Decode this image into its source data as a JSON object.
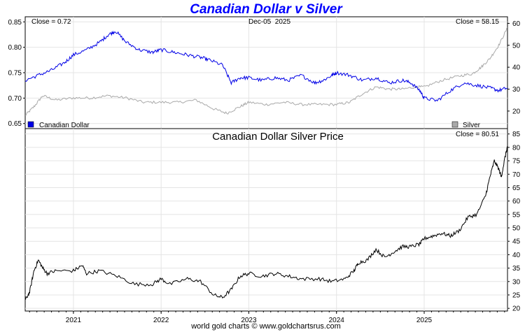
{
  "title": "Canadian Dollar v Silver",
  "footer": "world gold charts © www.goldchartsrus.com",
  "colors": {
    "cad": "#0000e6",
    "silver": "#a9a9a9",
    "ratio": "#000000",
    "title": "#0000ff",
    "grid": "#e4e4e4"
  },
  "chart_data": [
    {
      "type": "line",
      "name": "top-panel",
      "date_label": "Dec-05  2025",
      "left_close_label": "Close = 0.72",
      "right_close_label": "Close = 58.15",
      "x_ticks": [
        "2021",
        "2022",
        "2023",
        "2024",
        "2025"
      ],
      "x_range": [
        2020.45,
        2025.95
      ],
      "y_left_ticks": [
        "0.65",
        "0.70",
        "0.75",
        "0.80",
        "0.85"
      ],
      "y_left_range": [
        0.64,
        0.86
      ],
      "y_right_ticks": [
        "20",
        "30",
        "40",
        "50",
        "60"
      ],
      "y_right_range": [
        12,
        63
      ],
      "series": [
        {
          "name": "Canadian Dollar",
          "axis": "left",
          "x": [
            2020.45,
            2020.6,
            2020.75,
            2020.9,
            2021.0,
            2021.15,
            2021.3,
            2021.4,
            2021.48,
            2021.6,
            2021.75,
            2021.9,
            2022.0,
            2022.15,
            2022.3,
            2022.45,
            2022.55,
            2022.7,
            2022.8,
            2022.9,
            2023.0,
            2023.15,
            2023.3,
            2023.45,
            2023.6,
            2023.75,
            2023.85,
            2023.95,
            2024.0,
            2024.15,
            2024.3,
            2024.45,
            2024.6,
            2024.75,
            2024.85,
            2024.95,
            2025.0,
            2025.15,
            2025.3,
            2025.45,
            2025.6,
            2025.75,
            2025.85,
            2025.95
          ],
          "y": [
            0.735,
            0.745,
            0.755,
            0.77,
            0.785,
            0.795,
            0.81,
            0.825,
            0.832,
            0.81,
            0.795,
            0.79,
            0.795,
            0.79,
            0.785,
            0.78,
            0.775,
            0.765,
            0.73,
            0.74,
            0.74,
            0.735,
            0.74,
            0.735,
            0.745,
            0.73,
            0.735,
            0.745,
            0.75,
            0.745,
            0.735,
            0.74,
            0.73,
            0.735,
            0.73,
            0.715,
            0.7,
            0.695,
            0.715,
            0.73,
            0.725,
            0.72,
            0.715,
            0.72
          ]
        },
        {
          "name": "Silver",
          "axis": "right",
          "x": [
            2020.45,
            2020.55,
            2020.65,
            2020.8,
            2021.0,
            2021.2,
            2021.4,
            2021.6,
            2021.8,
            2022.0,
            2022.2,
            2022.4,
            2022.6,
            2022.75,
            2022.9,
            2023.0,
            2023.2,
            2023.4,
            2023.6,
            2023.8,
            2024.0,
            2024.15,
            2024.3,
            2024.45,
            2024.6,
            2024.75,
            2024.9,
            2025.0,
            2025.2,
            2025.4,
            2025.55,
            2025.65,
            2025.75,
            2025.85,
            2025.95
          ],
          "y": [
            18,
            22,
            27,
            25,
            26,
            26,
            27,
            26,
            24,
            24,
            24,
            25,
            21,
            19,
            22,
            24,
            23,
            24,
            23,
            23,
            23,
            24,
            28,
            31,
            30,
            30,
            31,
            31,
            34,
            36,
            37,
            40,
            44,
            50,
            58
          ]
        }
      ],
      "legend": [
        "Canadian Dollar",
        "Silver"
      ]
    },
    {
      "type": "line",
      "name": "bottom-panel",
      "title": "Canadian Dollar Silver Price",
      "close_label": "Close = 80.51",
      "x_ticks": [
        "2021",
        "2022",
        "2023",
        "2024",
        "2025"
      ],
      "x_range": [
        2020.45,
        2025.95
      ],
      "y_ticks": [
        "20",
        "25",
        "30",
        "35",
        "40",
        "45",
        "50",
        "55",
        "60",
        "65",
        "70",
        "75",
        "80",
        "85"
      ],
      "y_range": [
        19,
        87
      ],
      "series": [
        {
          "name": "CAD Silver Price",
          "x": [
            2020.45,
            2020.5,
            2020.55,
            2020.6,
            2020.65,
            2020.7,
            2020.8,
            2021.0,
            2021.1,
            2021.15,
            2021.3,
            2021.5,
            2021.7,
            2021.9,
            2022.0,
            2022.1,
            2022.3,
            2022.45,
            2022.6,
            2022.7,
            2022.8,
            2022.9,
            2023.0,
            2023.15,
            2023.3,
            2023.45,
            2023.6,
            2023.8,
            2023.95,
            2024.1,
            2024.2,
            2024.25,
            2024.35,
            2024.45,
            2024.55,
            2024.65,
            2024.75,
            2024.85,
            2024.95,
            2025.0,
            2025.1,
            2025.2,
            2025.3,
            2025.4,
            2025.5,
            2025.6,
            2025.7,
            2025.75,
            2025.8,
            2025.85,
            2025.88,
            2025.92,
            2025.95
          ],
          "y": [
            23,
            26,
            34,
            38,
            35,
            33,
            34,
            34,
            36,
            33,
            34,
            32,
            29,
            29,
            31,
            29,
            31,
            30,
            25,
            24,
            27,
            32,
            33,
            32,
            33,
            32,
            31,
            31,
            30,
            31,
            34,
            37,
            38,
            42,
            39,
            41,
            43,
            43,
            44,
            46,
            47,
            48,
            47,
            49,
            54,
            55,
            62,
            69,
            75,
            72,
            69,
            76,
            80.5
          ]
        }
      ]
    }
  ]
}
